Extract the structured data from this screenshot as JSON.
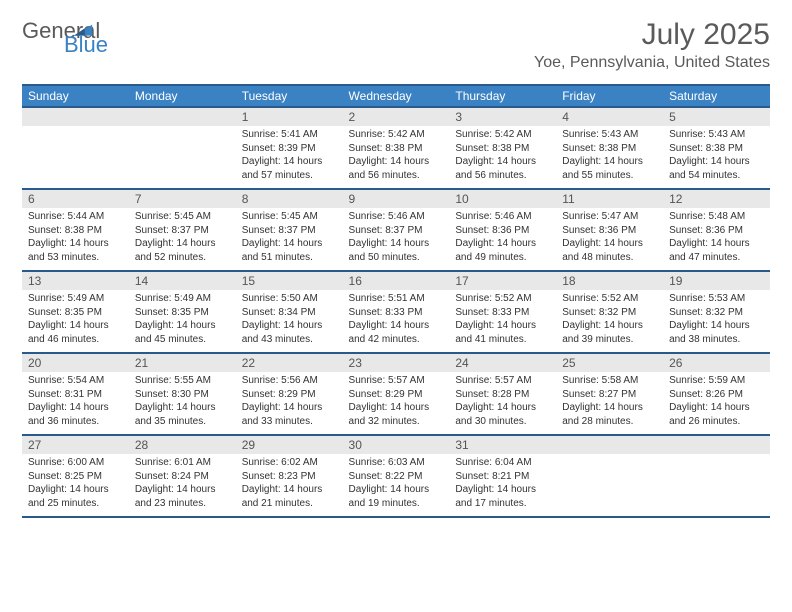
{
  "logo": {
    "word1": "General",
    "word2": "Blue"
  },
  "title": "July 2025",
  "location": "Yoe, Pennsylvania, United States",
  "colors": {
    "header_bg": "#3b82c4",
    "header_border": "#2a5a8a",
    "daynum_bg": "#e8e8e8",
    "text": "#333333",
    "muted": "#5a5a5a"
  },
  "day_labels": [
    "Sunday",
    "Monday",
    "Tuesday",
    "Wednesday",
    "Thursday",
    "Friday",
    "Saturday"
  ],
  "weeks": [
    [
      null,
      null,
      {
        "n": "1",
        "sr": "5:41 AM",
        "ss": "8:39 PM",
        "dl": "14 hours and 57 minutes."
      },
      {
        "n": "2",
        "sr": "5:42 AM",
        "ss": "8:38 PM",
        "dl": "14 hours and 56 minutes."
      },
      {
        "n": "3",
        "sr": "5:42 AM",
        "ss": "8:38 PM",
        "dl": "14 hours and 56 minutes."
      },
      {
        "n": "4",
        "sr": "5:43 AM",
        "ss": "8:38 PM",
        "dl": "14 hours and 55 minutes."
      },
      {
        "n": "5",
        "sr": "5:43 AM",
        "ss": "8:38 PM",
        "dl": "14 hours and 54 minutes."
      }
    ],
    [
      {
        "n": "6",
        "sr": "5:44 AM",
        "ss": "8:38 PM",
        "dl": "14 hours and 53 minutes."
      },
      {
        "n": "7",
        "sr": "5:45 AM",
        "ss": "8:37 PM",
        "dl": "14 hours and 52 minutes."
      },
      {
        "n": "8",
        "sr": "5:45 AM",
        "ss": "8:37 PM",
        "dl": "14 hours and 51 minutes."
      },
      {
        "n": "9",
        "sr": "5:46 AM",
        "ss": "8:37 PM",
        "dl": "14 hours and 50 minutes."
      },
      {
        "n": "10",
        "sr": "5:46 AM",
        "ss": "8:36 PM",
        "dl": "14 hours and 49 minutes."
      },
      {
        "n": "11",
        "sr": "5:47 AM",
        "ss": "8:36 PM",
        "dl": "14 hours and 48 minutes."
      },
      {
        "n": "12",
        "sr": "5:48 AM",
        "ss": "8:36 PM",
        "dl": "14 hours and 47 minutes."
      }
    ],
    [
      {
        "n": "13",
        "sr": "5:49 AM",
        "ss": "8:35 PM",
        "dl": "14 hours and 46 minutes."
      },
      {
        "n": "14",
        "sr": "5:49 AM",
        "ss": "8:35 PM",
        "dl": "14 hours and 45 minutes."
      },
      {
        "n": "15",
        "sr": "5:50 AM",
        "ss": "8:34 PM",
        "dl": "14 hours and 43 minutes."
      },
      {
        "n": "16",
        "sr": "5:51 AM",
        "ss": "8:33 PM",
        "dl": "14 hours and 42 minutes."
      },
      {
        "n": "17",
        "sr": "5:52 AM",
        "ss": "8:33 PM",
        "dl": "14 hours and 41 minutes."
      },
      {
        "n": "18",
        "sr": "5:52 AM",
        "ss": "8:32 PM",
        "dl": "14 hours and 39 minutes."
      },
      {
        "n": "19",
        "sr": "5:53 AM",
        "ss": "8:32 PM",
        "dl": "14 hours and 38 minutes."
      }
    ],
    [
      {
        "n": "20",
        "sr": "5:54 AM",
        "ss": "8:31 PM",
        "dl": "14 hours and 36 minutes."
      },
      {
        "n": "21",
        "sr": "5:55 AM",
        "ss": "8:30 PM",
        "dl": "14 hours and 35 minutes."
      },
      {
        "n": "22",
        "sr": "5:56 AM",
        "ss": "8:29 PM",
        "dl": "14 hours and 33 minutes."
      },
      {
        "n": "23",
        "sr": "5:57 AM",
        "ss": "8:29 PM",
        "dl": "14 hours and 32 minutes."
      },
      {
        "n": "24",
        "sr": "5:57 AM",
        "ss": "8:28 PM",
        "dl": "14 hours and 30 minutes."
      },
      {
        "n": "25",
        "sr": "5:58 AM",
        "ss": "8:27 PM",
        "dl": "14 hours and 28 minutes."
      },
      {
        "n": "26",
        "sr": "5:59 AM",
        "ss": "8:26 PM",
        "dl": "14 hours and 26 minutes."
      }
    ],
    [
      {
        "n": "27",
        "sr": "6:00 AM",
        "ss": "8:25 PM",
        "dl": "14 hours and 25 minutes."
      },
      {
        "n": "28",
        "sr": "6:01 AM",
        "ss": "8:24 PM",
        "dl": "14 hours and 23 minutes."
      },
      {
        "n": "29",
        "sr": "6:02 AM",
        "ss": "8:23 PM",
        "dl": "14 hours and 21 minutes."
      },
      {
        "n": "30",
        "sr": "6:03 AM",
        "ss": "8:22 PM",
        "dl": "14 hours and 19 minutes."
      },
      {
        "n": "31",
        "sr": "6:04 AM",
        "ss": "8:21 PM",
        "dl": "14 hours and 17 minutes."
      },
      null,
      null
    ]
  ],
  "labels": {
    "sunrise": "Sunrise: ",
    "sunset": "Sunset: ",
    "daylight": "Daylight: "
  }
}
